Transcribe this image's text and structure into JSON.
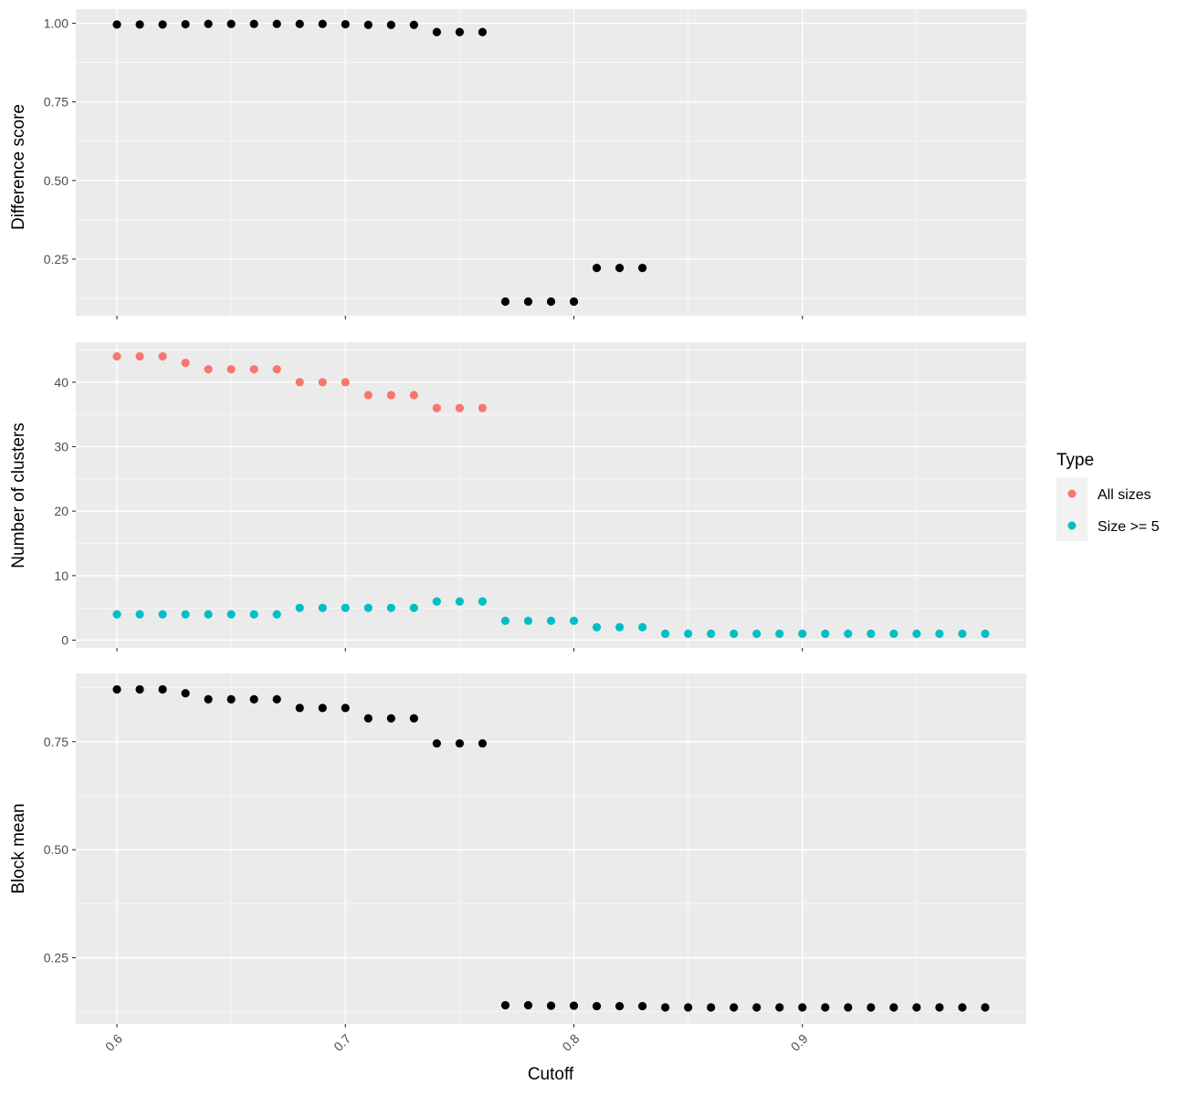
{
  "chart_data": [
    {
      "type": "scatter",
      "ylabel": "Difference score",
      "xlim": [
        0.582,
        0.998
      ],
      "ylim": [
        0.07,
        1.045
      ],
      "y_ticks": [
        0.25,
        0.5,
        0.75,
        1.0
      ],
      "y_tick_labels": [
        "0.25",
        "0.50",
        "0.75",
        "1.00"
      ],
      "series": [
        {
          "color": "#000000",
          "x": [
            0.6,
            0.61,
            0.62,
            0.63,
            0.64,
            0.65,
            0.66,
            0.67,
            0.68,
            0.69,
            0.7,
            0.71,
            0.72,
            0.73,
            0.74,
            0.75,
            0.76,
            0.77,
            0.78,
            0.79,
            0.8,
            0.81,
            0.82,
            0.83
          ],
          "y": [
            0.996,
            0.996,
            0.996,
            0.997,
            0.998,
            0.998,
            0.998,
            0.998,
            0.998,
            0.998,
            0.997,
            0.995,
            0.995,
            0.995,
            0.972,
            0.972,
            0.972,
            0.115,
            0.115,
            0.115,
            0.115,
            0.222,
            0.222,
            0.222
          ]
        }
      ]
    },
    {
      "type": "scatter",
      "ylabel": "Number of clusters",
      "xlim": [
        0.582,
        0.998
      ],
      "ylim": [
        -1.2,
        46.2
      ],
      "y_ticks": [
        0,
        10,
        20,
        30,
        40
      ],
      "y_tick_labels": [
        "0",
        "10",
        "20",
        "30",
        "40"
      ],
      "series": [
        {
          "name": "All sizes",
          "color": "#F8766D",
          "x": [
            0.6,
            0.61,
            0.62,
            0.63,
            0.64,
            0.65,
            0.66,
            0.67,
            0.68,
            0.69,
            0.7,
            0.71,
            0.72,
            0.73,
            0.74,
            0.75,
            0.76
          ],
          "y": [
            44,
            44,
            44,
            43,
            42,
            42,
            42,
            42,
            40,
            40,
            40,
            38,
            38,
            38,
            36,
            36,
            36
          ]
        },
        {
          "name": "Size >= 5",
          "color": "#00BFC4",
          "x": [
            0.6,
            0.61,
            0.62,
            0.63,
            0.64,
            0.65,
            0.66,
            0.67,
            0.68,
            0.69,
            0.7,
            0.71,
            0.72,
            0.73,
            0.74,
            0.75,
            0.76,
            0.77,
            0.78,
            0.79,
            0.8,
            0.81,
            0.82,
            0.83,
            0.84,
            0.85,
            0.86,
            0.87,
            0.88,
            0.89,
            0.9,
            0.91,
            0.92,
            0.93,
            0.94,
            0.95,
            0.96,
            0.97,
            0.98
          ],
          "y": [
            4,
            4,
            4,
            4,
            4,
            4,
            4,
            4,
            5,
            5,
            5,
            5,
            5,
            5,
            6,
            6,
            6,
            3,
            3,
            3,
            3,
            2,
            2,
            2,
            1,
            1,
            1,
            1,
            1,
            1,
            1,
            1,
            1,
            1,
            1,
            1,
            1,
            1,
            1
          ]
        }
      ]
    },
    {
      "type": "scatter",
      "ylabel": "Block mean",
      "xlabel": "Cutoff",
      "xlim": [
        0.582,
        0.998
      ],
      "ylim": [
        0.097,
        0.908
      ],
      "y_ticks": [
        0.25,
        0.5,
        0.75
      ],
      "y_tick_labels": [
        "0.25",
        "0.50",
        "0.75"
      ],
      "series": [
        {
          "color": "#000000",
          "x": [
            0.6,
            0.61,
            0.62,
            0.63,
            0.64,
            0.65,
            0.66,
            0.67,
            0.68,
            0.69,
            0.7,
            0.71,
            0.72,
            0.73,
            0.74,
            0.75,
            0.76,
            0.77,
            0.78,
            0.79,
            0.8,
            0.81,
            0.82,
            0.83,
            0.84,
            0.85,
            0.86,
            0.87,
            0.88,
            0.89,
            0.9,
            0.91,
            0.92,
            0.93,
            0.94,
            0.95,
            0.96,
            0.97,
            0.98
          ],
          "y": [
            0.871,
            0.871,
            0.871,
            0.862,
            0.848,
            0.848,
            0.848,
            0.848,
            0.828,
            0.828,
            0.828,
            0.804,
            0.804,
            0.804,
            0.746,
            0.746,
            0.746,
            0.14,
            0.14,
            0.139,
            0.139,
            0.138,
            0.138,
            0.138,
            0.135,
            0.135,
            0.135,
            0.135,
            0.135,
            0.135,
            0.135,
            0.135,
            0.135,
            0.135,
            0.135,
            0.135,
            0.135,
            0.135,
            0.135
          ]
        }
      ]
    }
  ],
  "x_axis": {
    "ticks": [
      0.6,
      0.7,
      0.8,
      0.9
    ],
    "tick_labels": [
      "0.6",
      "0.7",
      "0.8",
      "0.9"
    ],
    "label": "Cutoff"
  },
  "legend": {
    "title": "Type",
    "placement": "right",
    "items": [
      {
        "label": "All sizes",
        "color": "#F8766D"
      },
      {
        "label": "Size >= 5",
        "color": "#00BFC4"
      }
    ]
  },
  "panel_background": "#EBEBEB",
  "grid_color": "#FFFFFF"
}
